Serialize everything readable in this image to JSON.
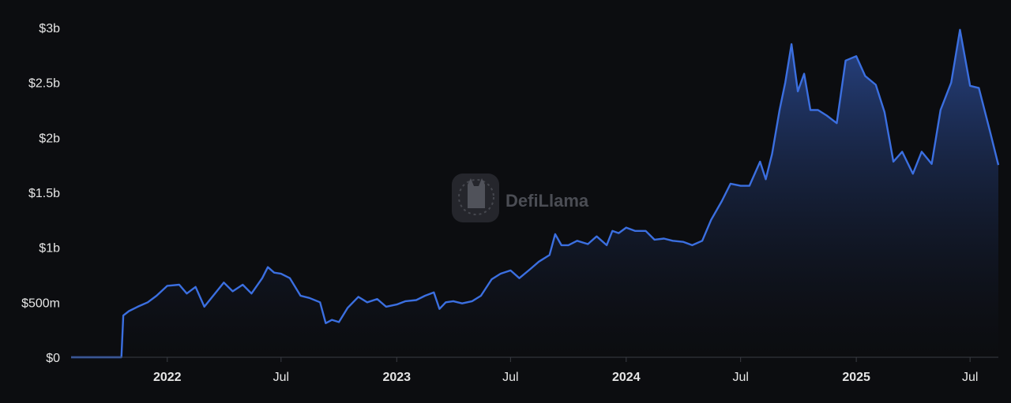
{
  "chart_data": {
    "type": "area",
    "title": "",
    "xlabel": "",
    "ylabel": "",
    "ylim": [
      0,
      3000000000
    ],
    "xlim": [
      "2021-08-01",
      "2025-08-15"
    ],
    "y_ticks": [
      {
        "value": 0,
        "label": "$0"
      },
      {
        "value": 500000000,
        "label": "$500m"
      },
      {
        "value": 1000000000,
        "label": "$1b"
      },
      {
        "value": 1500000000,
        "label": "$1.5b"
      },
      {
        "value": 2000000000,
        "label": "$2b"
      },
      {
        "value": 2500000000,
        "label": "$2.5b"
      },
      {
        "value": 3000000000,
        "label": "$3b"
      }
    ],
    "x_ticks": [
      {
        "date": "2022-01-01",
        "label": "2022",
        "bold": true
      },
      {
        "date": "2022-07-01",
        "label": "Jul",
        "bold": false
      },
      {
        "date": "2023-01-01",
        "label": "2023",
        "bold": true
      },
      {
        "date": "2023-07-01",
        "label": "Jul",
        "bold": false
      },
      {
        "date": "2024-01-01",
        "label": "2024",
        "bold": true
      },
      {
        "date": "2024-07-01",
        "label": "Jul",
        "bold": false
      },
      {
        "date": "2025-01-01",
        "label": "2025",
        "bold": true
      },
      {
        "date": "2025-07-01",
        "label": "Jul",
        "bold": false
      }
    ],
    "grid": false,
    "legend": "none",
    "series": [
      {
        "color": "#3b6fe0",
        "points": [
          [
            "2021-08-01",
            0
          ],
          [
            "2021-09-15",
            0
          ],
          [
            "2021-10-20",
            0
          ],
          [
            "2021-10-23",
            380000000
          ],
          [
            "2021-11-01",
            420000000
          ],
          [
            "2021-11-15",
            460000000
          ],
          [
            "2021-12-01",
            500000000
          ],
          [
            "2021-12-15",
            560000000
          ],
          [
            "2022-01-01",
            650000000
          ],
          [
            "2022-01-20",
            660000000
          ],
          [
            "2022-02-01",
            580000000
          ],
          [
            "2022-02-15",
            640000000
          ],
          [
            "2022-03-01",
            460000000
          ],
          [
            "2022-03-15",
            560000000
          ],
          [
            "2022-04-01",
            680000000
          ],
          [
            "2022-04-15",
            600000000
          ],
          [
            "2022-05-01",
            660000000
          ],
          [
            "2022-05-15",
            580000000
          ],
          [
            "2022-06-01",
            720000000
          ],
          [
            "2022-06-10",
            820000000
          ],
          [
            "2022-06-20",
            770000000
          ],
          [
            "2022-07-01",
            760000000
          ],
          [
            "2022-07-15",
            720000000
          ],
          [
            "2022-08-01",
            560000000
          ],
          [
            "2022-08-15",
            540000000
          ],
          [
            "2022-09-01",
            500000000
          ],
          [
            "2022-09-10",
            310000000
          ],
          [
            "2022-09-20",
            340000000
          ],
          [
            "2022-10-01",
            320000000
          ],
          [
            "2022-10-15",
            450000000
          ],
          [
            "2022-11-01",
            550000000
          ],
          [
            "2022-11-15",
            500000000
          ],
          [
            "2022-12-01",
            530000000
          ],
          [
            "2022-12-15",
            460000000
          ],
          [
            "2023-01-01",
            480000000
          ],
          [
            "2023-01-15",
            510000000
          ],
          [
            "2023-02-01",
            520000000
          ],
          [
            "2023-02-15",
            560000000
          ],
          [
            "2023-03-01",
            590000000
          ],
          [
            "2023-03-10",
            440000000
          ],
          [
            "2023-03-20",
            500000000
          ],
          [
            "2023-04-01",
            510000000
          ],
          [
            "2023-04-15",
            490000000
          ],
          [
            "2023-05-01",
            510000000
          ],
          [
            "2023-05-15",
            560000000
          ],
          [
            "2023-06-01",
            710000000
          ],
          [
            "2023-06-15",
            760000000
          ],
          [
            "2023-07-01",
            790000000
          ],
          [
            "2023-07-15",
            720000000
          ],
          [
            "2023-08-01",
            800000000
          ],
          [
            "2023-08-15",
            870000000
          ],
          [
            "2023-09-01",
            930000000
          ],
          [
            "2023-09-10",
            1120000000
          ],
          [
            "2023-09-20",
            1020000000
          ],
          [
            "2023-10-01",
            1020000000
          ],
          [
            "2023-10-15",
            1060000000
          ],
          [
            "2023-11-01",
            1030000000
          ],
          [
            "2023-11-15",
            1100000000
          ],
          [
            "2023-12-01",
            1020000000
          ],
          [
            "2023-12-10",
            1150000000
          ],
          [
            "2023-12-20",
            1130000000
          ],
          [
            "2024-01-01",
            1180000000
          ],
          [
            "2024-01-15",
            1150000000
          ],
          [
            "2024-02-01",
            1150000000
          ],
          [
            "2024-02-15",
            1070000000
          ],
          [
            "2024-03-01",
            1080000000
          ],
          [
            "2024-03-15",
            1060000000
          ],
          [
            "2024-04-01",
            1050000000
          ],
          [
            "2024-04-15",
            1020000000
          ],
          [
            "2024-05-01",
            1060000000
          ],
          [
            "2024-05-15",
            1250000000
          ],
          [
            "2024-06-01",
            1420000000
          ],
          [
            "2024-06-15",
            1580000000
          ],
          [
            "2024-07-01",
            1560000000
          ],
          [
            "2024-07-15",
            1560000000
          ],
          [
            "2024-08-01",
            1780000000
          ],
          [
            "2024-08-10",
            1620000000
          ],
          [
            "2024-08-20",
            1850000000
          ],
          [
            "2024-09-01",
            2250000000
          ],
          [
            "2024-09-10",
            2500000000
          ],
          [
            "2024-09-20",
            2850000000
          ],
          [
            "2024-09-30",
            2420000000
          ],
          [
            "2024-10-10",
            2580000000
          ],
          [
            "2024-10-20",
            2250000000
          ],
          [
            "2024-11-01",
            2250000000
          ],
          [
            "2024-11-15",
            2200000000
          ],
          [
            "2024-12-01",
            2130000000
          ],
          [
            "2024-12-15",
            2700000000
          ],
          [
            "2025-01-01",
            2740000000
          ],
          [
            "2025-01-15",
            2560000000
          ],
          [
            "2025-02-01",
            2480000000
          ],
          [
            "2025-02-15",
            2230000000
          ],
          [
            "2025-03-01",
            1780000000
          ],
          [
            "2025-03-15",
            1870000000
          ],
          [
            "2025-04-01",
            1670000000
          ],
          [
            "2025-04-15",
            1870000000
          ],
          [
            "2025-05-01",
            1760000000
          ],
          [
            "2025-05-15",
            2250000000
          ],
          [
            "2025-06-01",
            2500000000
          ],
          [
            "2025-06-15",
            2980000000
          ],
          [
            "2025-07-01",
            2470000000
          ],
          [
            "2025-07-15",
            2450000000
          ],
          [
            "2025-08-01",
            2070000000
          ],
          [
            "2025-08-15",
            1750000000
          ]
        ]
      }
    ]
  },
  "watermark": {
    "text": "DefiLlama",
    "icon": "llama-logo-icon"
  },
  "colors": {
    "background": "#0c0d10",
    "line": "#3b6fe0",
    "area_top": "#2d4f9e",
    "area_bottom": "#0c0d10",
    "axis_text": "#e6e6e6",
    "axis_line": "#3a3d44"
  }
}
